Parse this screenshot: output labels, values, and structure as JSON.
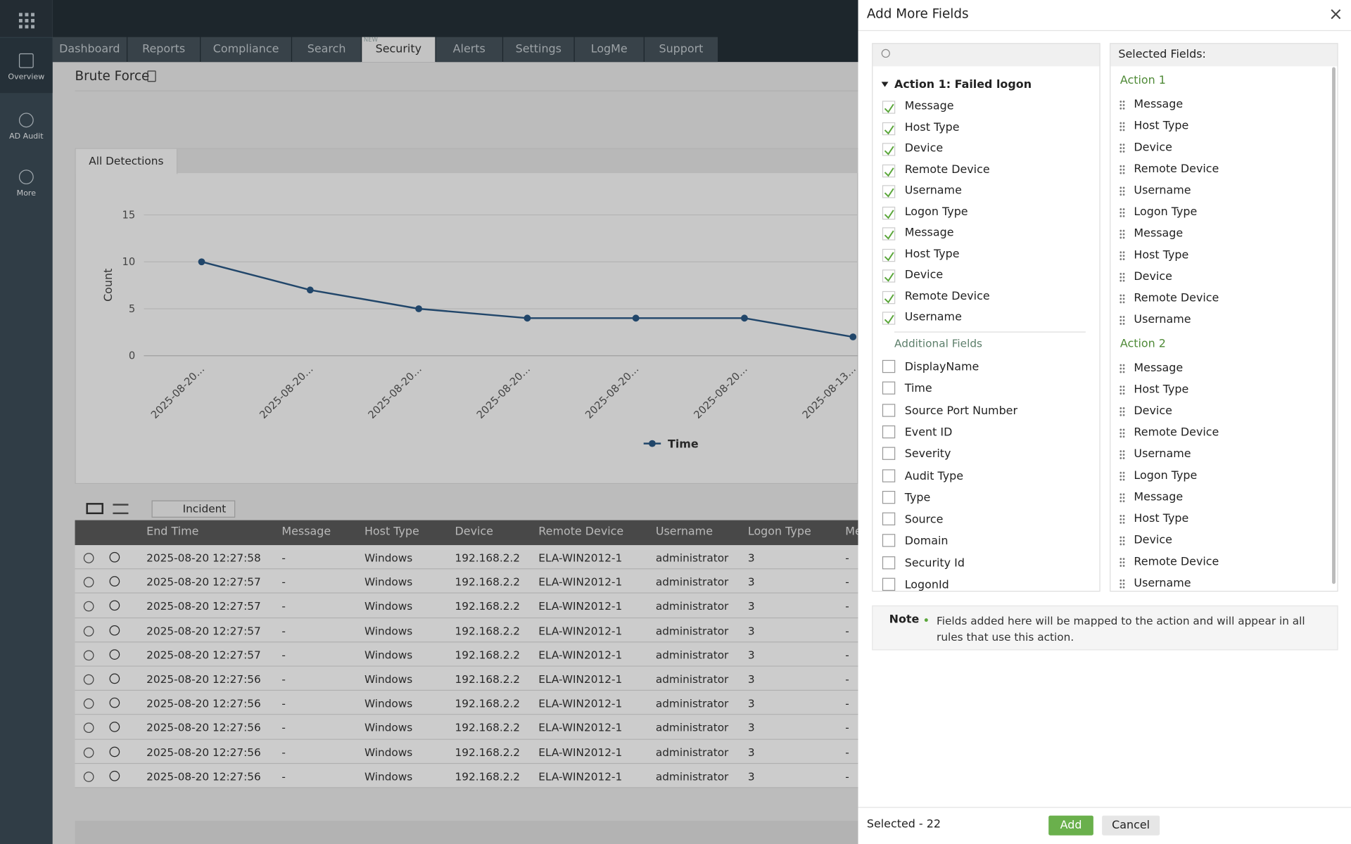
{
  "sidebar": {
    "items": [
      "Overview",
      "AD Audit",
      "More"
    ]
  },
  "tabs": [
    "Dashboard",
    "Reports",
    "Compliance",
    "Search",
    "Security",
    "Alerts",
    "Settings",
    "LogMe",
    "Support"
  ],
  "tab_badge": "NEW",
  "page_title": "Brute Force",
  "view_tab": "All Detections",
  "chart_data": {
    "type": "line",
    "y_label": "Count",
    "categories": [
      "2025-08-20…",
      "2025-08-20…",
      "2025-08-20…",
      "2025-08-20…",
      "2025-08-20…",
      "2025-08-20…",
      "2025-08-13…"
    ],
    "series": [
      {
        "name": "Time",
        "color": "#2a5885",
        "values": [
          10,
          7,
          5,
          4,
          4,
          4,
          2
        ]
      }
    ],
    "ylim": [
      0,
      15
    ],
    "yticks": [
      0,
      5,
      10,
      15
    ],
    "grid": true
  },
  "toolbar": {
    "incident_button": "Incident"
  },
  "table": {
    "columns": [
      "End Time",
      "Message",
      "Host Type",
      "Device",
      "Remote Device",
      "Username",
      "Logon Type",
      "Message"
    ],
    "rows": [
      [
        "2025-08-20 12:27:58",
        "-",
        "Windows",
        "192.168.2.2",
        "ELA-WIN2012-1",
        "administrator",
        "3",
        "-"
      ],
      [
        "2025-08-20 12:27:57",
        "-",
        "Windows",
        "192.168.2.2",
        "ELA-WIN2012-1",
        "administrator",
        "3",
        "-"
      ],
      [
        "2025-08-20 12:27:57",
        "-",
        "Windows",
        "192.168.2.2",
        "ELA-WIN2012-1",
        "administrator",
        "3",
        "-"
      ],
      [
        "2025-08-20 12:27:57",
        "-",
        "Windows",
        "192.168.2.2",
        "ELA-WIN2012-1",
        "administrator",
        "3",
        "-"
      ],
      [
        "2025-08-20 12:27:57",
        "-",
        "Windows",
        "192.168.2.2",
        "ELA-WIN2012-1",
        "administrator",
        "3",
        "-"
      ],
      [
        "2025-08-20 12:27:56",
        "-",
        "Windows",
        "192.168.2.2",
        "ELA-WIN2012-1",
        "administrator",
        "3",
        "-"
      ],
      [
        "2025-08-20 12:27:56",
        "-",
        "Windows",
        "192.168.2.2",
        "ELA-WIN2012-1",
        "administrator",
        "3",
        "-"
      ],
      [
        "2025-08-20 12:27:56",
        "-",
        "Windows",
        "192.168.2.2",
        "ELA-WIN2012-1",
        "administrator",
        "3",
        "-"
      ],
      [
        "2025-08-20 12:27:56",
        "-",
        "Windows",
        "192.168.2.2",
        "ELA-WIN2012-1",
        "administrator",
        "3",
        "-"
      ],
      [
        "2025-08-20 12:27:56",
        "-",
        "Windows",
        "192.168.2.2",
        "ELA-WIN2012-1",
        "administrator",
        "3",
        "-"
      ]
    ]
  },
  "modal": {
    "title": "Add More Fields",
    "close": "×",
    "action_heading": "Action 1: Failed logon",
    "checked_fields": [
      "Message",
      "Host Type",
      "Device",
      "Remote Device",
      "Username",
      "Logon Type",
      "Message",
      "Host Type",
      "Device",
      "Remote Device",
      "Username"
    ],
    "additional_heading": "Additional Fields",
    "additional_fields": [
      "DisplayName",
      "Time",
      "Source Port Number",
      "Event ID",
      "Severity",
      "Audit Type",
      "Type",
      "Source",
      "Domain",
      "Security Id",
      "LogonId"
    ],
    "selected_heading": "Selected Fields:",
    "groups": [
      {
        "name": "Action 1",
        "fields": [
          "Message",
          "Host Type",
          "Device",
          "Remote Device",
          "Username",
          "Logon Type",
          "Message",
          "Host Type",
          "Device",
          "Remote Device",
          "Username"
        ]
      },
      {
        "name": "Action 2",
        "fields": [
          "Message",
          "Host Type",
          "Device",
          "Remote Device",
          "Username",
          "Logon Type",
          "Message",
          "Host Type",
          "Device",
          "Remote Device",
          "Username"
        ]
      }
    ],
    "note_label": "Note",
    "note_text": "Fields added here will be mapped to the action and will appear in all rules that use this action.",
    "selected_count": "Selected - 22",
    "add": "Add",
    "cancel": "Cancel"
  }
}
